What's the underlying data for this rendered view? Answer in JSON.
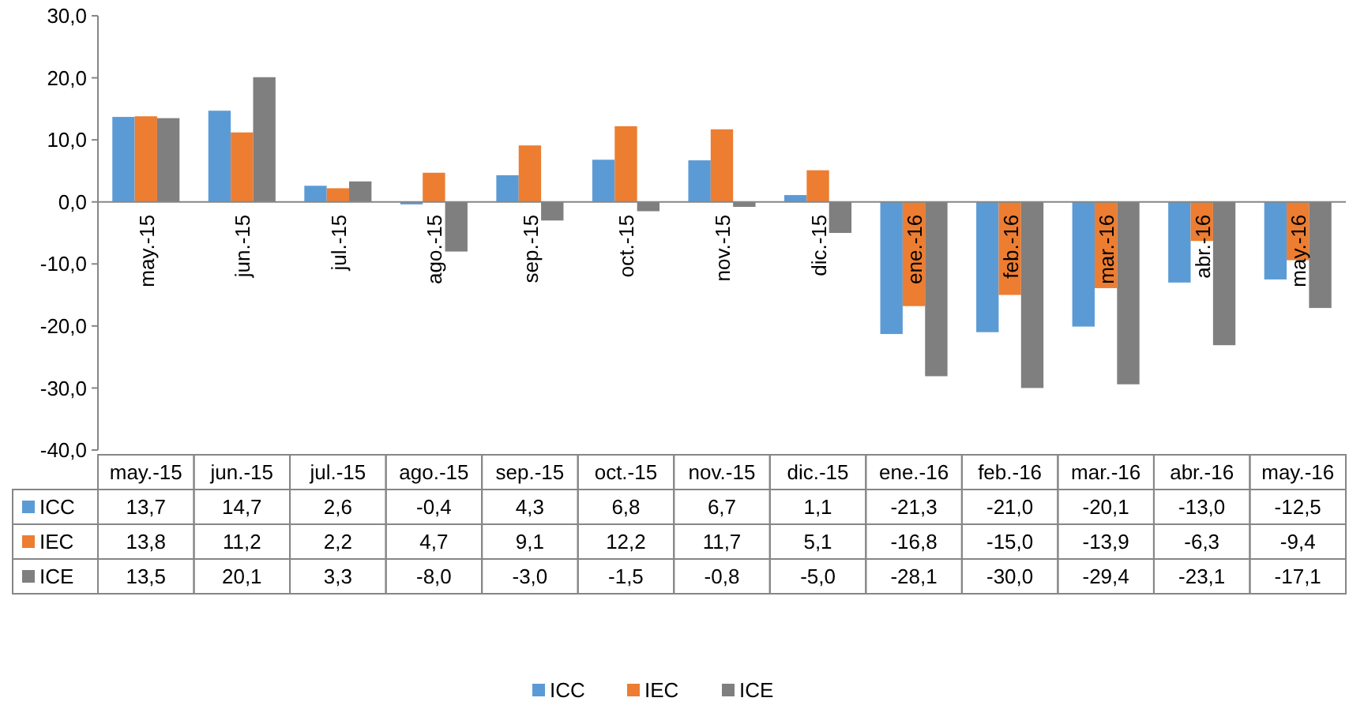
{
  "chart_data": {
    "type": "bar",
    "categories": [
      "may.-15",
      "jun.-15",
      "jul.-15",
      "ago.-15",
      "sep.-15",
      "oct.-15",
      "nov.-15",
      "dic.-15",
      "ene.-16",
      "feb.-16",
      "mar.-16",
      "abr.-16",
      "may.-16"
    ],
    "series": [
      {
        "name": "ICC",
        "color": "#5b9bd5",
        "values": [
          13.7,
          14.7,
          2.6,
          -0.4,
          4.3,
          6.8,
          6.7,
          1.1,
          -21.3,
          -21.0,
          -20.1,
          -13.0,
          -12.5
        ],
        "value_labels": [
          "13,7",
          "14,7",
          "2,6",
          "-0,4",
          "4,3",
          "6,8",
          "6,7",
          "1,1",
          "-21,3",
          "-21,0",
          "-20,1",
          "-13,0",
          "-12,5"
        ]
      },
      {
        "name": "IEC",
        "color": "#ed7d31",
        "values": [
          13.8,
          11.2,
          2.2,
          4.7,
          9.1,
          12.2,
          11.7,
          5.1,
          -16.8,
          -15.0,
          -13.9,
          -6.3,
          -9.4
        ],
        "value_labels": [
          "13,8",
          "11,2",
          "2,2",
          "4,7",
          "9,1",
          "12,2",
          "11,7",
          "5,1",
          "-16,8",
          "-15,0",
          "-13,9",
          "-6,3",
          "-9,4"
        ]
      },
      {
        "name": "ICE",
        "color": "#7f7f7f",
        "values": [
          13.5,
          20.1,
          3.3,
          -8.0,
          -3.0,
          -1.5,
          -0.8,
          -5.0,
          -28.1,
          -30.0,
          -29.4,
          -23.1,
          -17.1
        ],
        "value_labels": [
          "13,5",
          "20,1",
          "3,3",
          "-8,0",
          "-3,0",
          "-1,5",
          "-0,8",
          "-5,0",
          "-28,1",
          "-30,0",
          "-29,4",
          "-23,1",
          "-17,1"
        ]
      }
    ],
    "ylim": [
      -40,
      30
    ],
    "yticks": [
      {
        "value": -40,
        "label": "-40,0"
      },
      {
        "value": -30,
        "label": "-30,0"
      },
      {
        "value": -20,
        "label": "-20,0"
      },
      {
        "value": -10,
        "label": "-10,0"
      },
      {
        "value": 0,
        "label": "0,0"
      },
      {
        "value": 10,
        "label": "10,0"
      },
      {
        "value": 20,
        "label": "20,0"
      },
      {
        "value": 30,
        "label": "30,0"
      }
    ],
    "legend": "bottom",
    "grid": false
  }
}
